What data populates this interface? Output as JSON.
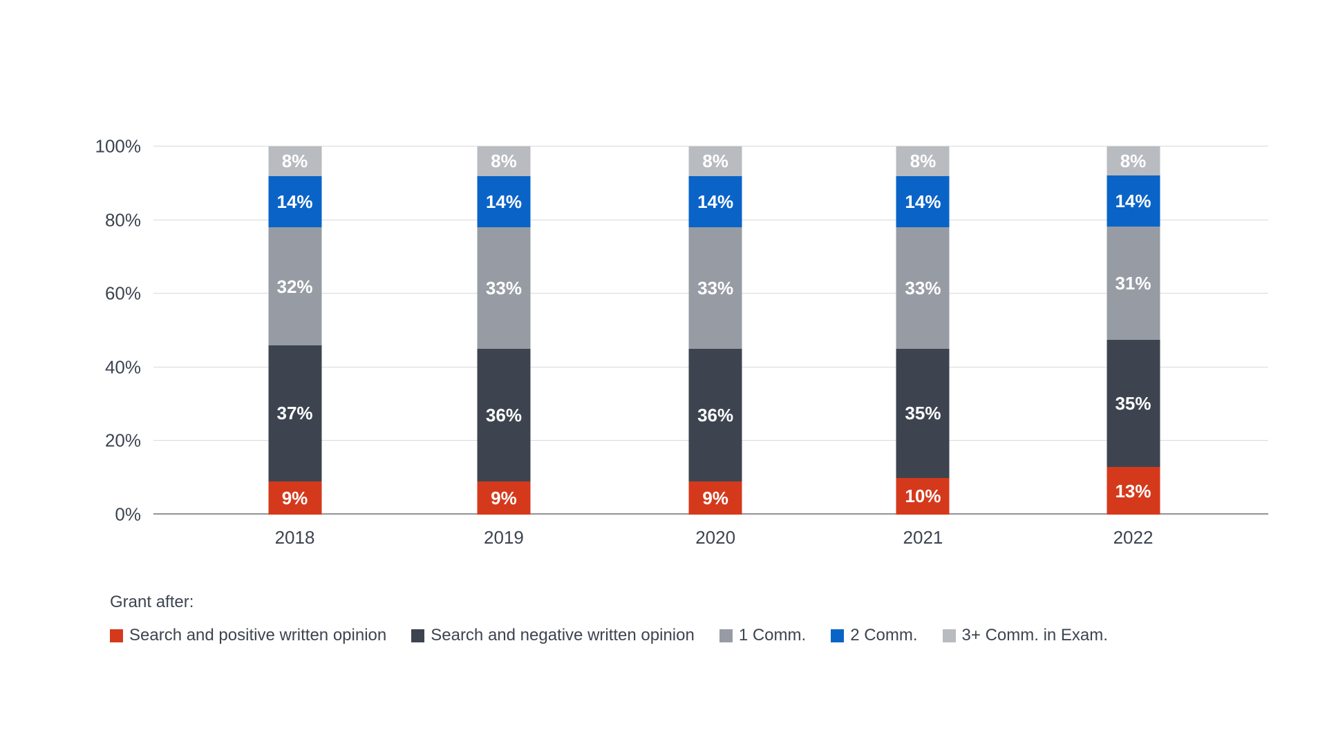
{
  "chart_data": {
    "type": "bar",
    "stacked": true,
    "categories": [
      "2018",
      "2019",
      "2020",
      "2021",
      "2022"
    ],
    "series": [
      {
        "name": "Search and positive written opinion",
        "color": "#d5391c",
        "values": [
          9,
          9,
          9,
          10,
          13
        ]
      },
      {
        "name": "Search and negative written opinion",
        "color": "#3d4450",
        "values": [
          37,
          36,
          36,
          35,
          35
        ]
      },
      {
        "name": "1 Comm.",
        "color": "#979ca4",
        "values": [
          32,
          33,
          33,
          33,
          31
        ]
      },
      {
        "name": "2 Comm.",
        "color": "#0a64c8",
        "values": [
          14,
          14,
          14,
          14,
          14
        ]
      },
      {
        "name": "3+ Comm. in Exam.",
        "color": "#b8bbc0",
        "values": [
          8,
          8,
          8,
          8,
          8
        ]
      }
    ],
    "value_suffix": "%",
    "y_axis": {
      "ticks": [
        "0%",
        "20%",
        "40%",
        "60%",
        "80%",
        "100%"
      ],
      "ylim": [
        0,
        100
      ],
      "grid": true
    },
    "legend_title": "Grant after:",
    "legend_position": "bottom"
  },
  "colors": {
    "background": "#ffffff",
    "gridline": "#d9d9db",
    "axis_line": "#909296",
    "text": "#3d4450",
    "bar_label": "#ffffff"
  }
}
